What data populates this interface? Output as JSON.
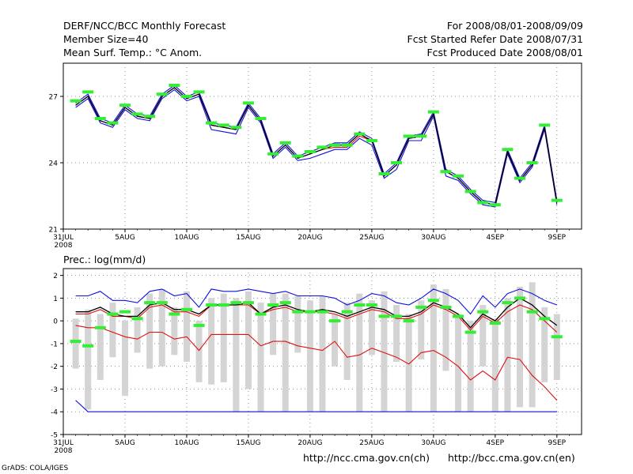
{
  "header": {
    "title": "DERF/NCC/BCC Monthly Forecast",
    "member_size": "Member Size=40",
    "variable": "Mean Surf. Temp.: °C Anom.",
    "period": "For 2008/08/01-2008/09/09",
    "started": "Fcst Started Refer Date 2008/07/31",
    "produced": "Fcst Produced Date 2008/08/01"
  },
  "footer": {
    "url_ncc": "http://ncc.cma.gov.cn(ch)",
    "url_bcc": "http://bcc.cma.gov.cn(en)",
    "grads": "GrADS: COLA/IGES"
  },
  "x_ticks": [
    "31JUL",
    "5AUG",
    "10AUG",
    "15AUG",
    "20AUG",
    "25AUG",
    "30AUG",
    "4SEP",
    "9SEP"
  ],
  "x_ticks_day": [
    0,
    5,
    10,
    15,
    20,
    25,
    30,
    35,
    40
  ],
  "x_year": "2008",
  "colors": {
    "blue": "#1010e0",
    "red": "#e01010",
    "green": "#33ee33",
    "gray": "#d4d4d4",
    "black": "#000000"
  },
  "chart_data": [
    {
      "type": "line",
      "title": "Mean Surf. Temp.: °C Anom.",
      "xlabel": "",
      "ylabel": "",
      "x": [
        1,
        2,
        3,
        4,
        5,
        6,
        7,
        8,
        9,
        10,
        11,
        12,
        13,
        14,
        15,
        16,
        17,
        18,
        19,
        20,
        21,
        22,
        23,
        24,
        25,
        26,
        27,
        28,
        29,
        30,
        31,
        32,
        33,
        34,
        35,
        36,
        37,
        38,
        39,
        40
      ],
      "ylim": [
        21,
        28.5
      ],
      "yticks": [
        21,
        24,
        27
      ],
      "series": [
        {
          "name": "upper",
          "color": "#1010e0",
          "values": [
            26.7,
            27.1,
            26.0,
            25.8,
            26.6,
            26.2,
            26.1,
            27.1,
            27.5,
            27.0,
            27.2,
            25.8,
            25.7,
            25.6,
            26.7,
            26.0,
            24.4,
            24.9,
            24.3,
            24.5,
            24.7,
            24.9,
            24.9,
            25.4,
            25.1,
            23.5,
            24.0,
            25.2,
            25.3,
            26.3,
            23.7,
            23.4,
            22.8,
            22.3,
            22.2,
            24.6,
            23.3,
            24.0,
            25.7,
            22.3
          ]
        },
        {
          "name": "median",
          "color": "#000000",
          "values": [
            26.6,
            27.0,
            25.9,
            25.7,
            26.5,
            26.1,
            26.0,
            27.0,
            27.4,
            26.9,
            27.1,
            25.7,
            25.6,
            25.5,
            26.6,
            25.9,
            24.3,
            24.8,
            24.2,
            24.4,
            24.6,
            24.8,
            24.8,
            25.3,
            25.0,
            23.4,
            23.9,
            25.1,
            25.2,
            26.2,
            23.6,
            23.3,
            22.7,
            22.2,
            22.1,
            24.5,
            23.2,
            23.9,
            25.6,
            22.2
          ]
        },
        {
          "name": "mean",
          "color": "#e01010",
          "values": [
            26.6,
            27.0,
            25.9,
            25.7,
            26.5,
            26.1,
            26.0,
            27.0,
            27.4,
            26.9,
            27.1,
            25.7,
            25.6,
            25.5,
            26.6,
            25.9,
            24.3,
            24.8,
            24.2,
            24.4,
            24.6,
            24.7,
            24.7,
            25.2,
            25.0,
            23.4,
            23.9,
            25.1,
            25.2,
            26.2,
            23.6,
            23.3,
            22.7,
            22.2,
            22.1,
            24.5,
            23.2,
            23.9,
            25.6,
            22.2
          ]
        },
        {
          "name": "lower",
          "color": "#1010e0",
          "values": [
            26.5,
            26.9,
            25.8,
            25.6,
            26.4,
            26.0,
            25.9,
            26.9,
            27.3,
            26.8,
            27.0,
            25.5,
            25.4,
            25.3,
            26.5,
            25.8,
            24.2,
            24.7,
            24.1,
            24.2,
            24.4,
            24.6,
            24.6,
            25.1,
            24.8,
            23.3,
            23.7,
            25.0,
            25.0,
            26.1,
            23.4,
            23.2,
            22.6,
            22.1,
            22.0,
            24.4,
            23.1,
            23.8,
            25.5,
            22.1
          ]
        },
        {
          "name": "observed-marker",
          "color": "#33ee33",
          "values": [
            26.8,
            27.2,
            26.0,
            25.8,
            26.6,
            26.2,
            26.1,
            27.1,
            27.5,
            27.0,
            27.2,
            25.8,
            25.7,
            25.6,
            26.7,
            26.0,
            24.4,
            24.9,
            24.3,
            24.5,
            24.7,
            24.8,
            24.8,
            25.3,
            25.0,
            23.5,
            24.0,
            25.2,
            25.2,
            26.3,
            23.6,
            23.4,
            22.7,
            22.2,
            22.1,
            24.6,
            23.3,
            24.0,
            25.7,
            22.3
          ]
        }
      ]
    },
    {
      "type": "line",
      "title": "Prec.: log(mm/d)",
      "xlabel": "",
      "ylabel": "",
      "x": [
        1,
        2,
        3,
        4,
        5,
        6,
        7,
        8,
        9,
        10,
        11,
        12,
        13,
        14,
        15,
        16,
        17,
        18,
        19,
        20,
        21,
        22,
        23,
        24,
        25,
        26,
        27,
        28,
        29,
        30,
        31,
        32,
        33,
        34,
        35,
        36,
        37,
        38,
        39,
        40
      ],
      "ylim": [
        -5,
        2.3
      ],
      "yticks": [
        -5,
        -4,
        -3,
        -2,
        -1,
        0,
        1,
        2
      ],
      "series": [
        {
          "name": "max",
          "color": "#1010e0",
          "values": [
            1.1,
            1.1,
            1.3,
            0.9,
            0.9,
            0.8,
            1.3,
            1.4,
            1.1,
            1.2,
            0.6,
            1.4,
            1.3,
            1.3,
            1.4,
            1.3,
            1.2,
            1.3,
            1.1,
            1.1,
            1.1,
            1.0,
            0.7,
            0.9,
            1.2,
            1.1,
            0.8,
            0.7,
            1.0,
            1.4,
            1.2,
            0.9,
            0.3,
            1.1,
            0.6,
            1.2,
            1.4,
            1.2,
            0.9,
            0.7
          ]
        },
        {
          "name": "median",
          "color": "#000000",
          "values": [
            0.4,
            0.4,
            0.6,
            0.3,
            0.2,
            0.2,
            0.7,
            0.8,
            0.5,
            0.5,
            0.3,
            0.7,
            0.7,
            0.7,
            0.8,
            0.3,
            0.6,
            0.7,
            0.5,
            0.4,
            0.5,
            0.4,
            0.2,
            0.4,
            0.6,
            0.5,
            0.2,
            0.2,
            0.4,
            0.8,
            0.6,
            0.3,
            -0.3,
            0.3,
            0.0,
            0.6,
            1.0,
            0.7,
            0.2,
            -0.2
          ]
        },
        {
          "name": "mean",
          "color": "#e01010",
          "values": [
            0.3,
            0.3,
            0.5,
            0.2,
            0.2,
            0.1,
            0.6,
            0.7,
            0.4,
            0.4,
            0.2,
            0.7,
            0.7,
            0.7,
            0.7,
            0.3,
            0.5,
            0.6,
            0.4,
            0.4,
            0.4,
            0.3,
            0.1,
            0.3,
            0.5,
            0.4,
            0.1,
            0.1,
            0.3,
            0.7,
            0.5,
            0.2,
            -0.4,
            0.2,
            -0.1,
            0.4,
            0.7,
            0.5,
            0.0,
            -0.5
          ]
        },
        {
          "name": "p25",
          "color": "#e01010",
          "values": [
            -0.2,
            -0.3,
            -0.3,
            -0.5,
            -0.7,
            -0.8,
            -0.5,
            -0.5,
            -0.8,
            -0.7,
            -1.3,
            -0.6,
            -0.6,
            -0.6,
            -0.6,
            -1.1,
            -0.9,
            -0.9,
            -1.1,
            -1.2,
            -1.3,
            -0.9,
            -1.6,
            -1.5,
            -1.2,
            -1.4,
            -1.6,
            -1.9,
            -1.4,
            -1.3,
            -1.6,
            -2.0,
            -2.6,
            -2.2,
            -2.6,
            -1.6,
            -1.7,
            -2.4,
            -2.9,
            -3.5
          ]
        },
        {
          "name": "min",
          "color": "#1010e0",
          "values": [
            -3.5,
            -4,
            -4,
            -4,
            -4,
            -4,
            -4,
            -4,
            -4,
            -4,
            -4,
            -4,
            -4,
            -4,
            -4,
            -4,
            -4,
            -4,
            -4,
            -4,
            -4,
            -4,
            -4,
            -4,
            -4,
            -4,
            -4,
            -4,
            -4,
            -4,
            -4,
            -4,
            -4,
            -4,
            -4,
            -4,
            -4,
            -4,
            -4,
            -4
          ]
        },
        {
          "name": "spread-bar-low",
          "color": "#d4d4d4",
          "values": [
            -2.1,
            -3.9,
            -2.6,
            -1.6,
            -3.3,
            -1.4,
            -2.1,
            -2.0,
            -1.5,
            -1.8,
            -2.7,
            -2.8,
            -2.7,
            -4.0,
            -3.0,
            -4.0,
            -1.5,
            -4.0,
            -1.4,
            -4.0,
            -4.0,
            -2.0,
            -2.6,
            -4.0,
            -1.5,
            -4.0,
            -1.8,
            -4.0,
            -1.7,
            -4.0,
            -2.2,
            -4.0,
            -4.0,
            -2.0,
            -4.0,
            -4.0,
            -3.8,
            -3.8,
            -2.7,
            -2.6
          ]
        },
        {
          "name": "spread-bar-high",
          "color": "#d4d4d4",
          "values": [
            0.1,
            0.5,
            0.3,
            0.8,
            0.0,
            0.6,
            1.2,
            1.4,
            0.6,
            1.3,
            0.0,
            1.0,
            1.2,
            1.0,
            1.3,
            0.8,
            1.2,
            1.2,
            1.1,
            0.9,
            1.1,
            0.3,
            0.8,
            1.2,
            0.9,
            1.3,
            0.7,
            0.3,
            0.9,
            1.6,
            1.4,
            0.3,
            0.0,
            0.7,
            0.1,
            1.0,
            1.5,
            1.7,
            0.6,
            0.3
          ]
        },
        {
          "name": "observed-marker",
          "color": "#33ee33",
          "values": [
            -0.9,
            -1.1,
            -0.3,
            0.3,
            0.4,
            0.1,
            0.8,
            0.8,
            0.3,
            0.5,
            -0.2,
            0.7,
            0.7,
            0.8,
            0.8,
            0.3,
            0.7,
            0.8,
            0.4,
            0.4,
            0.4,
            0.0,
            0.4,
            0.7,
            0.7,
            0.2,
            0.2,
            0.0,
            0.6,
            0.9,
            0.6,
            0.2,
            -0.5,
            0.4,
            -0.1,
            0.8,
            1.0,
            0.4,
            0.1,
            -0.7
          ]
        }
      ]
    }
  ]
}
